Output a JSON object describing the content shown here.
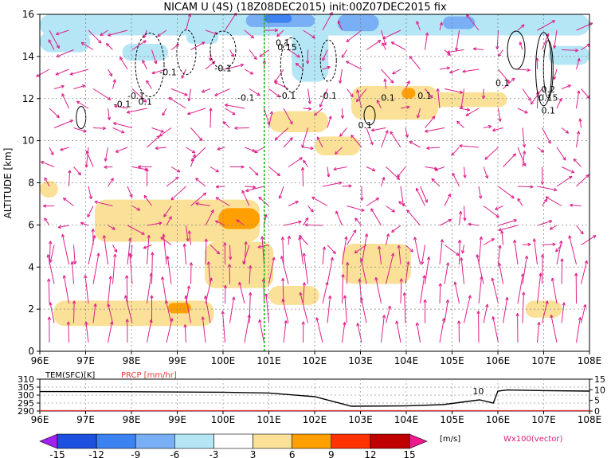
{
  "title": "NICAM U (4S) (18Z08DEC2015) init:00Z07DEC2015 fix",
  "chart_data": [
    {
      "type": "heatmap",
      "title": "NICAM U (4S) (18Z08DEC2015) init:00Z07DEC2015 fix",
      "ylabel": "ALTITUDE [km]",
      "x": [
        "96E",
        "97E",
        "98E",
        "99E",
        "100E",
        "101E",
        "102E",
        "103E",
        "104E",
        "105E",
        "106E",
        "107E",
        "108E"
      ],
      "x_values": [
        96,
        97,
        98,
        99,
        100,
        101,
        102,
        103,
        104,
        105,
        106,
        107,
        108
      ],
      "xlim": [
        96,
        108
      ],
      "y": [
        0,
        2,
        4,
        6,
        8,
        10,
        12,
        14,
        16
      ],
      "y_labels": [
        "0",
        "2",
        "4",
        "6",
        "8",
        "10",
        "12",
        "14",
        "16"
      ],
      "ylim": [
        0,
        16
      ],
      "grid": true,
      "vertical_marker_x": 100.9,
      "contour_labels": [
        "-0.1",
        "-0.1",
        "-0.1",
        "-0.1",
        "-0.1",
        "0.1",
        "0.15",
        "0.1",
        "0.1",
        "0.1",
        "0.1",
        "0.2",
        "0.15",
        "0.1",
        "-0.1",
        "-0.1",
        "0.1"
      ],
      "vector_legend": "Wx100(vector)",
      "regions": [
        {
          "level": 3,
          "x0": 97.2,
          "x1": 100.8,
          "y0": 5.2,
          "y1": 7.2
        },
        {
          "level": 6,
          "x0": 99.9,
          "x1": 100.8,
          "y0": 5.8,
          "y1": 6.8
        },
        {
          "level": 3,
          "x0": 99.6,
          "x1": 101.1,
          "y0": 3.0,
          "y1": 5.2
        },
        {
          "level": 3,
          "x0": 96.3,
          "x1": 99.8,
          "y0": 1.2,
          "y1": 2.4
        },
        {
          "level": 6,
          "x0": 98.8,
          "x1": 99.3,
          "y0": 1.8,
          "y1": 2.3
        },
        {
          "level": 3,
          "x0": 102.8,
          "x1": 104.7,
          "y0": 11.0,
          "y1": 12.6
        },
        {
          "level": 6,
          "x0": 103.9,
          "x1": 104.2,
          "y0": 12.0,
          "y1": 12.5
        },
        {
          "level": 3,
          "x0": 104.5,
          "x1": 106.2,
          "y0": 11.6,
          "y1": 12.3
        },
        {
          "level": 3,
          "x0": 101.0,
          "x1": 102.3,
          "y0": 10.4,
          "y1": 11.4
        },
        {
          "level": 3,
          "x0": 102.6,
          "x1": 104.1,
          "y0": 3.2,
          "y1": 5.1
        },
        {
          "level": 3,
          "x0": 101.0,
          "x1": 102.1,
          "y0": 2.2,
          "y1": 3.1
        },
        {
          "level": 3,
          "x0": 106.6,
          "x1": 107.4,
          "y0": 1.6,
          "y1": 2.4
        },
        {
          "level": 3,
          "x0": 102.0,
          "x1": 103.0,
          "y0": 9.3,
          "y1": 10.2
        },
        {
          "level": 3,
          "x0": 96.0,
          "x1": 96.4,
          "y0": 7.3,
          "y1": 8.1
        },
        {
          "level": -3,
          "x0": 96.0,
          "x1": 108.0,
          "y0": 15.0,
          "y1": 16.0
        },
        {
          "level": -3,
          "x0": 101.5,
          "x1": 102.3,
          "y0": 12.8,
          "y1": 16.0
        },
        {
          "level": -3,
          "x0": 99.2,
          "x1": 99.9,
          "y0": 14.6,
          "y1": 15.2
        },
        {
          "level": -3,
          "x0": 96.0,
          "x1": 97.1,
          "y0": 14.2,
          "y1": 15.2
        },
        {
          "level": -3,
          "x0": 97.8,
          "x1": 98.8,
          "y0": 13.8,
          "y1": 14.6
        },
        {
          "level": -3,
          "x0": 107.1,
          "x1": 108.0,
          "y0": 13.6,
          "y1": 14.5
        },
        {
          "level": -6,
          "x0": 100.5,
          "x1": 102.0,
          "y0": 15.4,
          "y1": 16.0
        },
        {
          "level": -6,
          "x0": 102.5,
          "x1": 103.4,
          "y0": 15.2,
          "y1": 16.0
        },
        {
          "level": -6,
          "x0": 104.8,
          "x1": 105.5,
          "y0": 15.3,
          "y1": 15.9
        },
        {
          "level": -9,
          "x0": 100.9,
          "x1": 101.5,
          "y0": 15.6,
          "y1": 16.0
        }
      ]
    },
    {
      "type": "line",
      "title": "",
      "series": [
        {
          "name": "TEM(SFC)[K]",
          "color": "#000000",
          "x": [
            96,
            98,
            100,
            101,
            102,
            102.8,
            104,
            104.8,
            105.6,
            105.9,
            106.0,
            106.2,
            107,
            108
          ],
          "values": [
            302.2,
            302.1,
            301.8,
            301.3,
            299.0,
            293.0,
            293.2,
            294.0,
            297.0,
            295.0,
            302.5,
            303.2,
            302.8,
            302.5
          ]
        },
        {
          "name": "PRCP [mm/hr]",
          "color": "#e53935",
          "x": [
            96,
            108
          ],
          "values": [
            0,
            0
          ]
        }
      ],
      "x": [
        "96E",
        "97E",
        "98E",
        "99E",
        "100E",
        "101E",
        "102E",
        "103E",
        "104E",
        "105E",
        "106E",
        "107E",
        "108E"
      ],
      "x_values": [
        96,
        97,
        98,
        99,
        100,
        101,
        102,
        103,
        104,
        105,
        106,
        107,
        108
      ],
      "xlim": [
        96,
        108
      ],
      "ylim_left": [
        290,
        310
      ],
      "yticks_left": [
        "290",
        "295",
        "300",
        "305",
        "310"
      ],
      "ylim_right": [
        0,
        15
      ],
      "yticks_right": [
        "0",
        "5",
        "10",
        "15"
      ],
      "annotation": "10"
    },
    {
      "type": "colorbar",
      "labels": [
        "-15",
        "-12",
        "-9",
        "-6",
        "-3",
        "3",
        "6",
        "9",
        "12",
        "15"
      ],
      "colors": [
        "#a020f0",
        "#1e50e0",
        "#3c82f0",
        "#78aff5",
        "#b4e6f5",
        "#ffffff",
        "#fae197",
        "#ffa000",
        "#ff3200",
        "#c00000",
        "#f0188c"
      ],
      "unit": "[m/s]"
    }
  ]
}
